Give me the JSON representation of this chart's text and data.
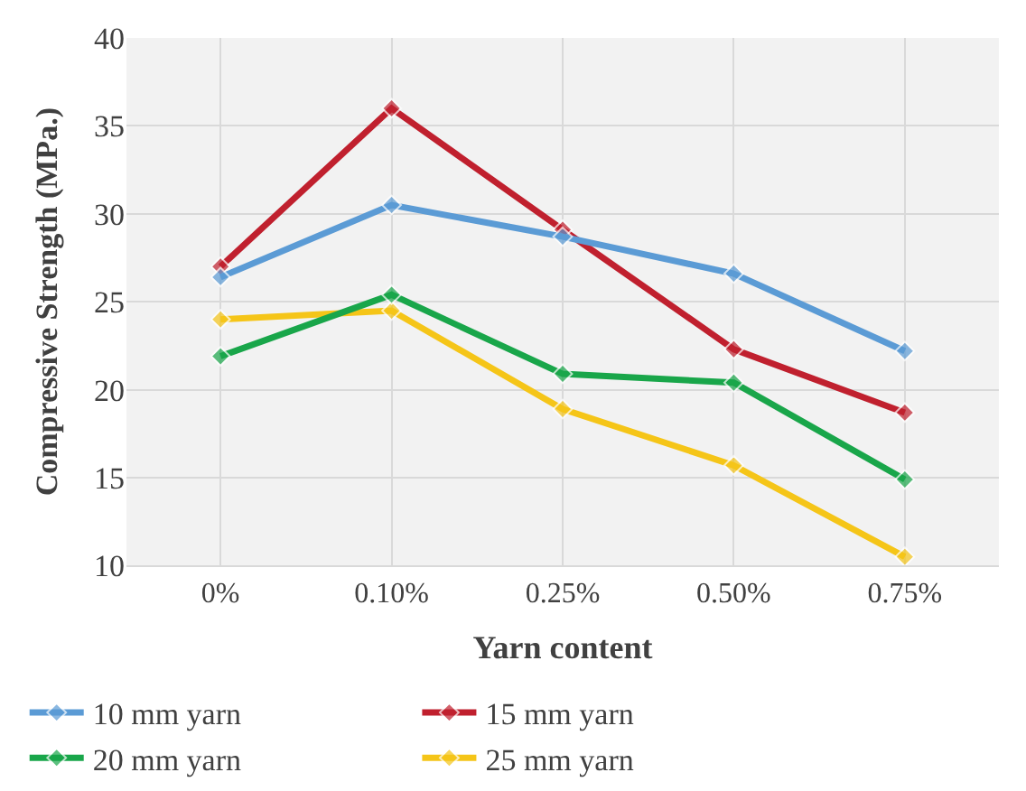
{
  "chart_data": {
    "type": "line",
    "xlabel": "Yarn content",
    "ylabel": "Compressive Strength (MPa.)",
    "categories": [
      "0%",
      "0.10%",
      "0.25%",
      "0.50%",
      "0.75%"
    ],
    "series": [
      {
        "name": "10 mm yarn",
        "color": "#5b9bd5",
        "values": [
          26.4,
          30.5,
          28.7,
          26.6,
          22.2
        ]
      },
      {
        "name": "15 mm yarn",
        "color": "#c0202e",
        "values": [
          27.0,
          36.0,
          29.1,
          22.3,
          18.7
        ]
      },
      {
        "name": "20 mm yarn",
        "color": "#19a64a",
        "values": [
          21.9,
          25.4,
          20.9,
          20.4,
          14.9
        ]
      },
      {
        "name": "25 mm yarn",
        "color": "#f5c518",
        "values": [
          24.0,
          24.5,
          18.9,
          15.7,
          10.5
        ]
      }
    ],
    "ylim": [
      10,
      40
    ],
    "yticks": [
      10,
      15,
      20,
      25,
      30,
      35,
      40
    ],
    "grid": true,
    "legend": "bottom",
    "marker": "diamond",
    "line_style": "solid"
  }
}
